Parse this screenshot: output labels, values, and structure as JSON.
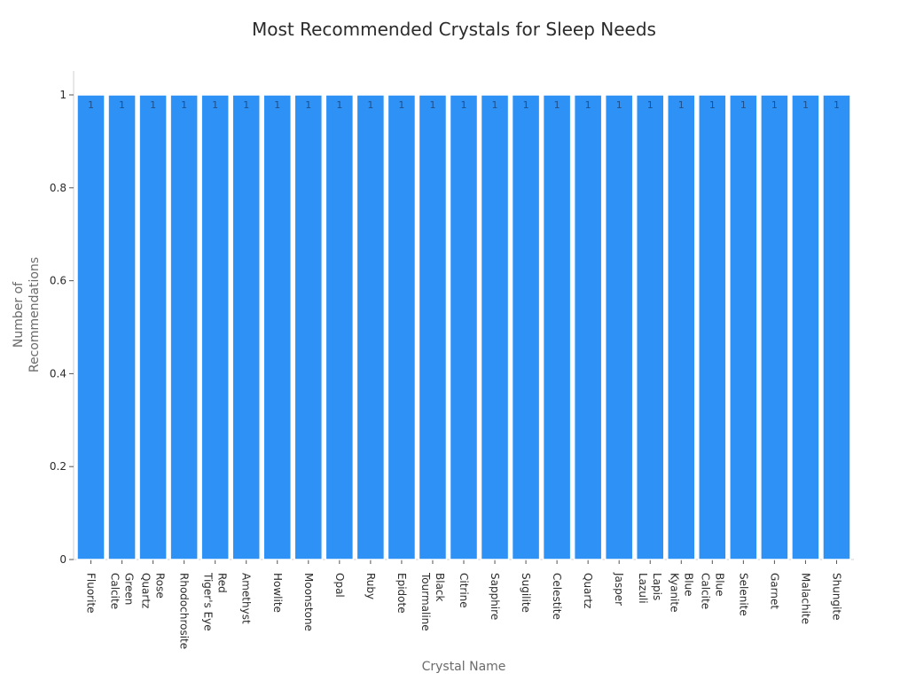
{
  "chart_data": {
    "type": "bar",
    "title": "Most Recommended Crystals for Sleep Needs",
    "xlabel": "Crystal Name",
    "ylabel": [
      "Number of",
      "Recommendations"
    ],
    "ylim": [
      0,
      1
    ],
    "yticks": [
      "0",
      "0.2",
      "0.4",
      "0.6",
      "0.8",
      "1"
    ],
    "ytick_values": [
      0,
      0.2,
      0.4,
      0.6,
      0.8,
      1
    ],
    "grid": false,
    "legend": "none",
    "bar_color": "#2e91f6",
    "bar_edge_color": "#ffffff",
    "categories": [
      [
        "Fluorite"
      ],
      [
        "Green",
        "Calcite"
      ],
      [
        "Rose",
        "Quartz"
      ],
      [
        "Rhodochrosite"
      ],
      [
        "Red",
        "Tiger's Eye"
      ],
      [
        "Amethyst"
      ],
      [
        "Howlite"
      ],
      [
        "Moonstone"
      ],
      [
        "Opal"
      ],
      [
        "Ruby"
      ],
      [
        "Epidote"
      ],
      [
        "Black",
        "Tourmaline"
      ],
      [
        "Citrine"
      ],
      [
        "Sapphire"
      ],
      [
        "Sugilite"
      ],
      [
        "Celestite"
      ],
      [
        "Quartz"
      ],
      [
        "Jasper"
      ],
      [
        "Lapis",
        "Lazuli"
      ],
      [
        "Blue",
        "Kyanite"
      ],
      [
        "Blue",
        "Calcite"
      ],
      [
        "Selenite"
      ],
      [
        "Garnet"
      ],
      [
        "Malachite"
      ],
      [
        "Shungite"
      ]
    ],
    "values": [
      1,
      1,
      1,
      1,
      1,
      1,
      1,
      1,
      1,
      1,
      1,
      1,
      1,
      1,
      1,
      1,
      1,
      1,
      1,
      1,
      1,
      1,
      1,
      1,
      1
    ],
    "data_labels": [
      "1",
      "1",
      "1",
      "1",
      "1",
      "1",
      "1",
      "1",
      "1",
      "1",
      "1",
      "1",
      "1",
      "1",
      "1",
      "1",
      "1",
      "1",
      "1",
      "1",
      "1",
      "1",
      "1",
      "1",
      "1"
    ]
  }
}
